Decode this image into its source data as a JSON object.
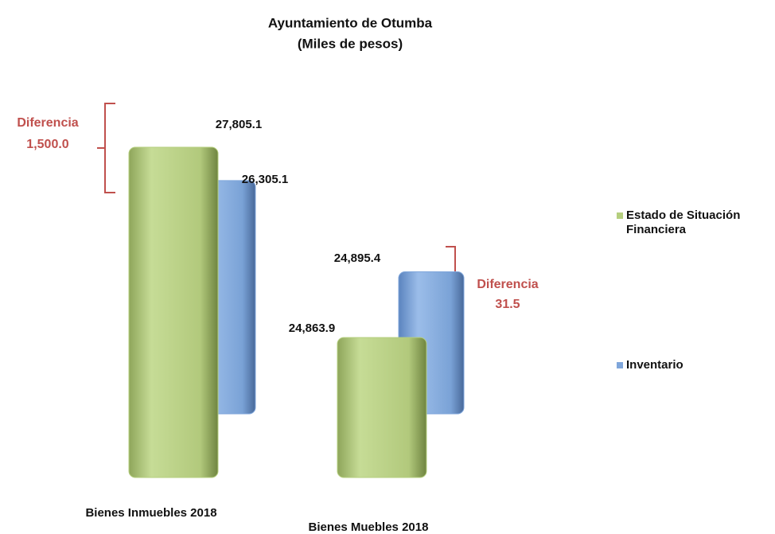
{
  "chart_data": {
    "type": "bar3d",
    "title": "Ayuntamiento  de Otumba",
    "subtitle": "(Miles  de pesos)",
    "categories": [
      "Bienes Inmuebles 2018",
      "Bienes Muebles 2018"
    ],
    "series": [
      {
        "name": "Estado de Situación Financiera",
        "color": "#b5cf7e",
        "values": [
          27805.1,
          24863.9
        ],
        "value_labels": [
          "27,805.1",
          "24,863.9"
        ]
      },
      {
        "name": "Inventario",
        "color": "#7fa6db",
        "values": [
          26305.1,
          24895.4
        ],
        "value_labels": [
          "26,305.1",
          "24,895.4"
        ]
      }
    ],
    "ylim": [
      22700,
      28500
    ],
    "annotations": [
      {
        "text": "Diferencia",
        "value": "1,500.0"
      },
      {
        "text": "Diferencia",
        "value": "31.5"
      }
    ]
  }
}
